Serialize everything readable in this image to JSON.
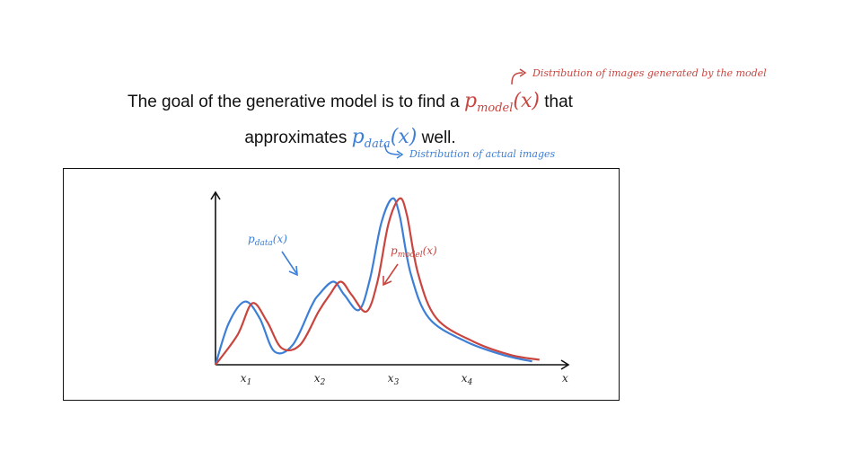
{
  "headline": {
    "line1_prefix": "The goal of the generative model is to find a",
    "line1_suffix": "that",
    "line2_prefix": "approximates",
    "line2_suffix": "well."
  },
  "model_symbol": {
    "base": "p",
    "sub": "model",
    "arg": "(x)"
  },
  "data_symbol": {
    "base": "p",
    "sub": "data",
    "arg": "(x)"
  },
  "annotations": {
    "model_note": "Distribution of images generated by the model",
    "data_note": "Distribution of actual images"
  },
  "colors": {
    "model": "#c9453f",
    "data": "#3d7fd6",
    "axis": "#111111"
  },
  "chart_data": {
    "type": "line",
    "xlabel": "x",
    "ylabel": "",
    "x_ticks": [
      {
        "label": "x",
        "sub": "1",
        "x": 1
      },
      {
        "label": "x",
        "sub": "2",
        "x": 2
      },
      {
        "label": "x",
        "sub": "3",
        "x": 3
      },
      {
        "label": "x",
        "sub": "4",
        "x": 4
      }
    ],
    "series": [
      {
        "name": "p_data(x)",
        "label_base": "p",
        "label_sub": "data",
        "label_arg": "(x)",
        "color": "#3d7fd6",
        "points": [
          [
            0.6,
            0.0
          ],
          [
            0.78,
            0.25
          ],
          [
            1.0,
            0.38
          ],
          [
            1.2,
            0.28
          ],
          [
            1.4,
            0.08
          ],
          [
            1.65,
            0.12
          ],
          [
            1.9,
            0.35
          ],
          [
            2.0,
            0.42
          ],
          [
            2.2,
            0.5
          ],
          [
            2.35,
            0.42
          ],
          [
            2.55,
            0.33
          ],
          [
            2.7,
            0.52
          ],
          [
            2.85,
            0.85
          ],
          [
            3.0,
            1.0
          ],
          [
            3.1,
            0.9
          ],
          [
            3.25,
            0.55
          ],
          [
            3.5,
            0.28
          ],
          [
            4.0,
            0.14
          ],
          [
            4.5,
            0.06
          ],
          [
            4.9,
            0.02
          ]
        ]
      },
      {
        "name": "p_model(x)",
        "label_base": "p",
        "label_sub": "model",
        "label_arg": "(x)",
        "color": "#c9453f",
        "points": [
          [
            0.6,
            0.0
          ],
          [
            0.9,
            0.18
          ],
          [
            1.1,
            0.37
          ],
          [
            1.3,
            0.26
          ],
          [
            1.5,
            0.1
          ],
          [
            1.75,
            0.12
          ],
          [
            2.0,
            0.32
          ],
          [
            2.15,
            0.42
          ],
          [
            2.3,
            0.5
          ],
          [
            2.45,
            0.42
          ],
          [
            2.65,
            0.32
          ],
          [
            2.8,
            0.5
          ],
          [
            2.95,
            0.85
          ],
          [
            3.1,
            1.0
          ],
          [
            3.2,
            0.9
          ],
          [
            3.35,
            0.55
          ],
          [
            3.6,
            0.28
          ],
          [
            4.1,
            0.14
          ],
          [
            4.6,
            0.06
          ],
          [
            5.0,
            0.03
          ]
        ]
      }
    ]
  }
}
